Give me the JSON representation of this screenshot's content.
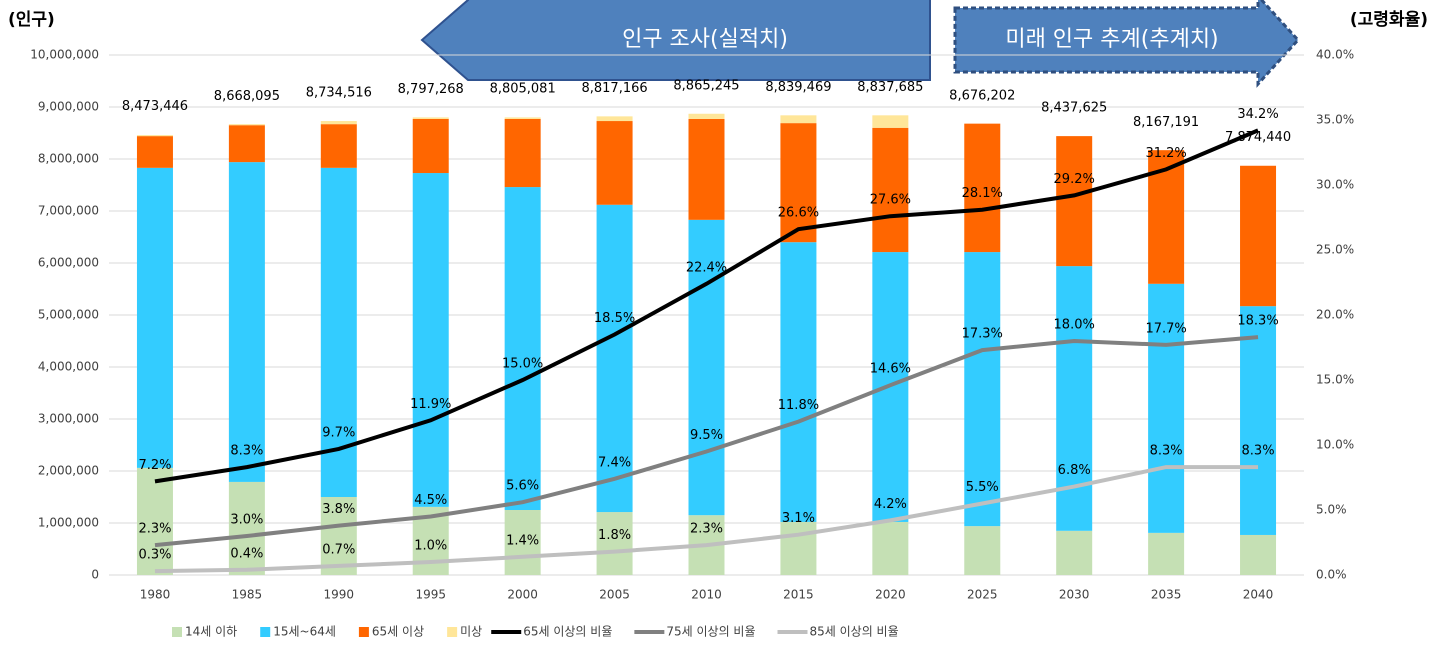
{
  "chart_data": {
    "type": "bar",
    "y_label": "(인구)",
    "y2_label": "(고령화율)",
    "banner_past": "인구 조사(실적치)",
    "banner_future": "미래 인구 추계(추계치)",
    "categories": [
      "1980",
      "1985",
      "1990",
      "1995",
      "2000",
      "2005",
      "2010",
      "2015",
      "2020",
      "2025",
      "2030",
      "2035",
      "2040"
    ],
    "series": [
      {
        "name": "14세 이하",
        "type": "bar",
        "color": "#c5e0b4",
        "values": [
          2060000,
          1790000,
          1500000,
          1310000,
          1250000,
          1210000,
          1150000,
          1020000,
          1020000,
          940000,
          850000,
          810000,
          770000
        ]
      },
      {
        "name": "15세~64세",
        "type": "bar",
        "color": "#33ccff",
        "values": [
          5770000,
          6150000,
          6330000,
          6420000,
          6210000,
          5910000,
          5680000,
          5380000,
          5190000,
          5270000,
          5090000,
          4790000,
          4400000
        ]
      },
      {
        "name": "65세 이상",
        "type": "bar",
        "color": "#ff6600",
        "values": [
          610000,
          710000,
          840000,
          1040000,
          1310000,
          1610000,
          1940000,
          2290000,
          2390000,
          2470000,
          2500000,
          2570000,
          2700000
        ]
      },
      {
        "name": "미상",
        "type": "bar",
        "color": "#ffe699",
        "values": [
          20000,
          20000,
          60000,
          30000,
          30000,
          90000,
          100000,
          150000,
          240000,
          0,
          0,
          0,
          0
        ]
      },
      {
        "name": "65세 이상의 비율",
        "type": "line",
        "axis": "y2",
        "color": "#000000",
        "values": [
          7.2,
          8.3,
          9.7,
          11.9,
          15.0,
          18.5,
          22.4,
          26.6,
          27.6,
          28.1,
          29.2,
          31.2,
          34.2
        ],
        "value_labels": [
          "7.2%",
          "8.3%",
          "9.7%",
          "11.9%",
          "15.0%",
          "18.5%",
          "22.4%",
          "26.6%",
          "27.6%",
          "28.1%",
          "29.2%",
          "31.2%",
          "34.2%"
        ]
      },
      {
        "name": "75세 이상의 비율",
        "type": "line",
        "axis": "y2",
        "color": "#808080",
        "values": [
          2.3,
          3.0,
          3.8,
          4.5,
          5.6,
          7.4,
          9.5,
          11.8,
          14.6,
          17.3,
          18.0,
          17.7,
          18.3
        ],
        "value_labels": [
          "2.3%",
          "3.0%",
          "3.8%",
          "4.5%",
          "5.6%",
          "7.4%",
          "9.5%",
          "11.8%",
          "14.6%",
          "17.3%",
          "18.0%",
          "17.7%",
          "18.3%"
        ]
      },
      {
        "name": "85세 이상의 비율",
        "type": "line",
        "axis": "y2",
        "color": "#bfbfbf",
        "values": [
          0.3,
          0.4,
          0.7,
          1.0,
          1.4,
          1.8,
          2.3,
          3.1,
          4.2,
          5.5,
          6.8,
          8.3,
          8.3
        ],
        "value_labels": [
          "0.3%",
          "0.4%",
          "0.7%",
          "1.0%",
          "1.4%",
          "1.8%",
          "2.3%",
          "3.1%",
          "4.2%",
          "5.5%",
          "6.8%",
          "8.3%",
          "8.3%"
        ]
      }
    ],
    "totals": [
      {
        "value": 8473446,
        "label": "8,473,446"
      },
      {
        "value": 8668095,
        "label": "8,668,095"
      },
      {
        "value": 8734516,
        "label": "8,734,516"
      },
      {
        "value": 8797268,
        "label": "8,797,268"
      },
      {
        "value": 8805081,
        "label": "8,805,081"
      },
      {
        "value": 8817166,
        "label": "8,817,166"
      },
      {
        "value": 8865245,
        "label": "8,865,245"
      },
      {
        "value": 8839469,
        "label": "8,839,469"
      },
      {
        "value": 8837685,
        "label": "8,837,685"
      },
      {
        "value": 8676202,
        "label": "8,676,202"
      },
      {
        "value": 8437625,
        "label": "8,437,625"
      },
      {
        "value": 8167191,
        "label": "8,167,191"
      },
      {
        "value": 7874440,
        "label": "7,874,440"
      }
    ],
    "ylim": [
      0,
      10000000
    ],
    "yticks": [
      0,
      {
        "value": 1000000,
        "label": "1,000,000"
      },
      {
        "value": 2000000,
        "label": "2,000,000"
      },
      {
        "value": 3000000,
        "label": "3,000,000"
      },
      {
        "value": 4000000,
        "label": "4,000,000"
      },
      {
        "value": 5000000,
        "label": "5,000,000"
      },
      {
        "value": 6000000,
        "label": "6,000,000"
      },
      {
        "value": 7000000,
        "label": "7,000,000"
      },
      {
        "value": 8000000,
        "label": "8,000,000"
      },
      {
        "value": 9000000,
        "label": "9,000,000"
      },
      {
        "value": 10000000,
        "label": "10,000,000"
      }
    ],
    "y2lim": [
      0,
      40
    ],
    "y2ticks": [
      {
        "value": 0,
        "label": "0.0%"
      },
      {
        "value": 5,
        "label": "5.0%"
      },
      {
        "value": 10,
        "label": "10.0%"
      },
      {
        "value": 15,
        "label": "15.0%"
      },
      {
        "value": 20,
        "label": "20.0%"
      },
      {
        "value": 25,
        "label": "25.0%"
      },
      {
        "value": 30,
        "label": "30.0%"
      },
      {
        "value": 35,
        "label": "35.0%"
      },
      {
        "value": 40,
        "label": "40.0%"
      }
    ],
    "grid": true
  }
}
